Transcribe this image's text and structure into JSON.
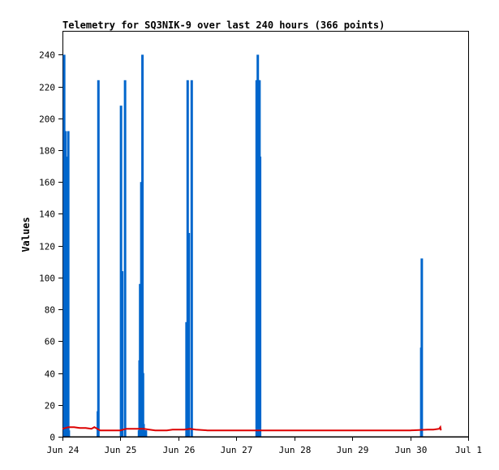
{
  "chart_data": {
    "type": "bar",
    "title": "Telemetry for SQ3NIK-9 over last 240 hours (366 points)",
    "ylabel": "Values",
    "xlabel": "",
    "ylim": [
      0,
      255
    ],
    "xlim": [
      0,
      7
    ],
    "y_ticks": [
      0,
      20,
      40,
      60,
      80,
      100,
      120,
      140,
      160,
      180,
      200,
      220,
      240
    ],
    "x_ticks": [
      {
        "pos": 0,
        "label": "Jun 24"
      },
      {
        "pos": 1,
        "label": "Jun 25"
      },
      {
        "pos": 2,
        "label": "Jun 26"
      },
      {
        "pos": 3,
        "label": "Jun 27"
      },
      {
        "pos": 4,
        "label": "Jun 28"
      },
      {
        "pos": 5,
        "label": "Jun 29"
      },
      {
        "pos": 6,
        "label": "Jun 30"
      },
      {
        "pos": 7,
        "label": "Jul 1"
      }
    ],
    "colors": {
      "bars": "#0066cc",
      "line": "#dd0000",
      "axes": "#000000"
    },
    "bar_series": {
      "x": [
        0.03,
        0.05,
        0.07,
        0.09,
        0.1,
        0.11,
        0.61,
        0.62,
        1.01,
        1.03,
        1.08,
        1.32,
        1.33,
        1.34,
        1.35,
        1.36,
        1.37,
        1.38,
        1.39,
        1.4,
        1.41,
        1.42,
        1.43,
        1.44,
        2.14,
        2.16,
        2.18,
        2.23,
        3.35,
        3.37,
        3.38,
        3.4,
        3.41,
        6.19,
        6.2
      ],
      "values": [
        240,
        192,
        48,
        176,
        192,
        4,
        16,
        224,
        208,
        104,
        224,
        4,
        48,
        96,
        80,
        160,
        160,
        240,
        40,
        8,
        4,
        4,
        4,
        4,
        72,
        224,
        128,
        224,
        224,
        240,
        224,
        224,
        176,
        56,
        112
      ]
    },
    "line_series": {
      "x": [
        0.0,
        0.05,
        0.1,
        0.2,
        0.3,
        0.4,
        0.5,
        0.55,
        0.6,
        0.65,
        0.7,
        0.8,
        0.9,
        1.0,
        1.05,
        1.1,
        1.2,
        1.4,
        1.5,
        1.6,
        1.8,
        1.9,
        2.0,
        2.1,
        2.2,
        2.3,
        2.5,
        3.0,
        3.5,
        4.0,
        4.5,
        5.0,
        5.5,
        6.0,
        6.3,
        6.4,
        6.5,
        6.52,
        6.53
      ],
      "values": [
        5,
        5.5,
        6,
        6,
        5.5,
        5.5,
        5,
        6,
        5,
        4,
        4,
        4,
        4,
        4,
        4.5,
        5,
        5,
        5,
        4.5,
        4,
        4,
        4.5,
        4.5,
        4.5,
        5,
        4.5,
        4,
        4,
        4,
        4,
        4,
        4,
        4,
        4,
        4.5,
        4.5,
        5,
        6,
        4
      ]
    }
  }
}
